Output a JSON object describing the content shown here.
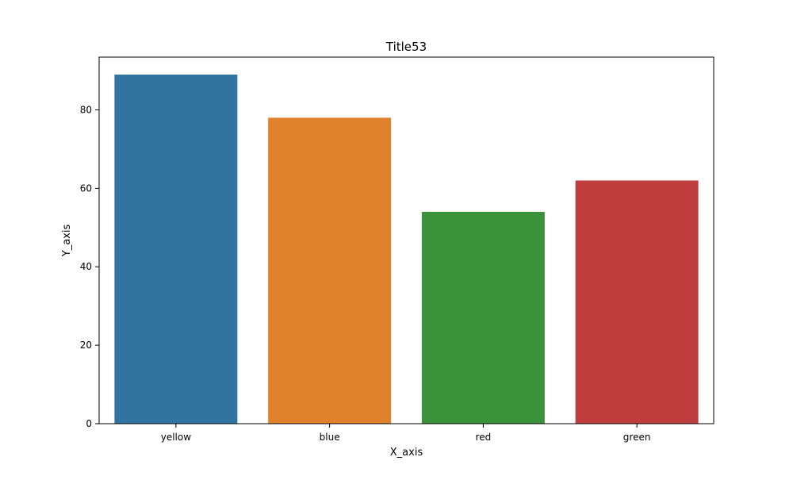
{
  "chart_data": {
    "type": "bar",
    "title": "Title53",
    "xlabel": "X_axis",
    "ylabel": "Y_axis",
    "categories": [
      "yellow",
      "blue",
      "red",
      "green"
    ],
    "values": [
      89,
      78,
      54,
      62
    ],
    "colors": [
      "#3274a1",
      "#e1812c",
      "#3a923a",
      "#c03d3e"
    ],
    "ylim": [
      0,
      93.45
    ],
    "yticks": [
      0,
      20,
      40,
      60,
      80
    ],
    "grid": false,
    "legend": "none"
  }
}
